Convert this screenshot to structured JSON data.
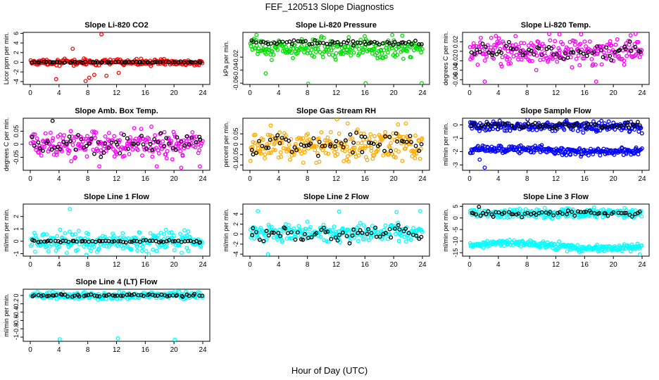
{
  "figure": {
    "title": "FEF_120513  Slope Diagnostics",
    "xlabel": "Hour of Day (UTC)"
  },
  "colors": {
    "red": "#ff0000",
    "green": "#00dd00",
    "magenta": "#ff00ff",
    "orange": "#ffaa00",
    "blue": "#0000ff",
    "cyan": "#00ffff",
    "black": "#000000"
  },
  "chart_data": [
    {
      "type": "scatter",
      "title": "Slope Li-820 CO2",
      "ylabel": "Licor ppm per min.",
      "xlim": [
        0,
        24
      ],
      "ylim": [
        -4.6,
        6.2
      ],
      "xticks": [
        0,
        4,
        8,
        12,
        16,
        20,
        24
      ],
      "yticks": [
        -4,
        -2,
        0,
        2,
        4,
        6
      ],
      "series": [
        {
          "name": "raw",
          "color": "red",
          "center": 0,
          "spread": 0.5,
          "spread2": 0,
          "outliers": [
            [
              9.9,
              5.8
            ],
            [
              3.6,
              -3.5
            ],
            [
              7.7,
              -3.9
            ],
            [
              8.2,
              -3.2
            ],
            [
              10.6,
              -2.8
            ],
            [
              12.3,
              -2.2
            ],
            [
              5.9,
              2.8
            ],
            [
              8.9,
              -2.6
            ]
          ]
        },
        {
          "name": "mean",
          "color": "black",
          "center": 0,
          "spread": 0.08,
          "spread2": 0,
          "outliers": []
        }
      ]
    },
    {
      "type": "scatter",
      "title": "Slope Li-820 Pressure",
      "ylabel": "kPa per min.",
      "xlim": [
        0,
        24
      ],
      "ylim": [
        -0.062,
        0.018
      ],
      "xticks": [
        0,
        4,
        8,
        12,
        16,
        20,
        24
      ],
      "yticks": [
        -0.06,
        -0.04,
        -0.02
      ],
      "series": [
        {
          "name": "raw",
          "color": "green",
          "center": -0.006,
          "spread": 0.012,
          "spread2": 0,
          "outliers": [
            [
              2.2,
              -0.045
            ],
            [
              8.1,
              -0.061
            ],
            [
              16.1,
              -0.06
            ],
            [
              23.9,
              -0.06
            ],
            [
              0.9,
              0.014
            ],
            [
              19.8,
              0.014
            ],
            [
              21.2,
              0.013
            ]
          ]
        },
        {
          "name": "mean",
          "color": "black",
          "center": 0.002,
          "spread": 0.003,
          "spread2": 0,
          "outliers": []
        }
      ]
    },
    {
      "type": "scatter",
      "title": "Slope Li-820 Temp.",
      "ylabel": "degrees C per min.",
      "xlim": [
        0,
        24
      ],
      "ylim": [
        -0.07,
        0.04
      ],
      "xticks": [
        0,
        4,
        8,
        12,
        16,
        20,
        24
      ],
      "yticks": [
        -0.06,
        -0.04,
        -0.02,
        0,
        0.02
      ],
      "series": [
        {
          "name": "raw",
          "color": "magenta",
          "center": 0,
          "spread": 0.025,
          "spread2": 0,
          "outliers": [
            [
              23.1,
              0.037
            ],
            [
              2.1,
              -0.064
            ],
            [
              17.6,
              -0.064
            ],
            [
              12.5,
              0.036
            ]
          ]
        },
        {
          "name": "mean",
          "color": "black",
          "center": 0,
          "spread": 0.015,
          "spread2": 0,
          "outliers": []
        }
      ]
    },
    {
      "type": "scatter",
      "title": "Slope Amb. Box Temp.",
      "ylabel": "degrees C per min.",
      "xlim": [
        0,
        24
      ],
      "ylim": [
        -0.1,
        0.1
      ],
      "xticks": [
        0,
        4,
        8,
        12,
        16,
        20,
        24
      ],
      "yticks": [
        -0.05,
        0,
        0.05
      ],
      "series": [
        {
          "name": "raw",
          "color": "magenta",
          "center": -0.002,
          "spread": 0.045,
          "spread2": 0,
          "outliers": [
            [
              9.6,
              -0.085
            ],
            [
              17.6,
              -0.085
            ],
            [
              23.6,
              -0.085
            ],
            [
              21.0,
              -0.09
            ]
          ]
        },
        {
          "name": "mean",
          "color": "black",
          "center": 0,
          "spread": 0.035,
          "spread2": 0,
          "outliers": [
            [
              3.1,
              0.09
            ]
          ]
        }
      ]
    },
    {
      "type": "scatter",
      "title": "Slope Gas Stream RH",
      "ylabel": "percent per min.",
      "xlim": [
        0,
        24
      ],
      "ylim": [
        -0.125,
        0.125
      ],
      "xticks": [
        0,
        4,
        8,
        12,
        16,
        20,
        24
      ],
      "yticks": [
        -0.1,
        -0.05,
        0,
        0.05
      ],
      "series": [
        {
          "name": "raw",
          "color": "orange",
          "center": -0.005,
          "spread": 0.06,
          "spread2": 0,
          "outliers": [
            [
              2.9,
              0.09
            ],
            [
              12.1,
              0.12
            ],
            [
              13.6,
              0.1
            ],
            [
              20.6,
              0.095
            ],
            [
              21.7,
              0.1
            ]
          ]
        },
        {
          "name": "mean",
          "color": "black",
          "center": 0,
          "spread": 0.045,
          "spread2": 0,
          "outliers": []
        }
      ]
    },
    {
      "type": "scatter",
      "title": "Slope Sample Flow",
      "ylabel": "ml/min per min.",
      "xlim": [
        0,
        24
      ],
      "ylim": [
        -3.4,
        0.5
      ],
      "xticks": [
        0,
        4,
        8,
        12,
        16,
        20,
        24
      ],
      "yticks": [
        -3,
        -2,
        -1,
        0
      ],
      "series": [
        {
          "name": "raw",
          "color": "blue",
          "center": -0.1,
          "spread": 0.35,
          "spread2": 0,
          "outliers": [
            [
              1.4,
              -2.6
            ],
            [
              2.1,
              -3.2
            ]
          ]
        },
        {
          "name": "raw-low",
          "color": "blue",
          "center": -1.9,
          "spread": 0.25,
          "spread2": 0.12,
          "outliers": []
        },
        {
          "name": "mean",
          "color": "black",
          "center": -0.05,
          "spread": 0.2,
          "spread2": 0,
          "outliers": []
        }
      ]
    },
    {
      "type": "scatter",
      "title": "Slope Line 1 Flow",
      "ylabel": "ml/min per min.",
      "xlim": [
        0,
        24
      ],
      "ylim": [
        -1.2,
        3.0
      ],
      "xticks": [
        0,
        4,
        8,
        12,
        16,
        20,
        24
      ],
      "yticks": [
        -1,
        0,
        1,
        2
      ],
      "series": [
        {
          "name": "raw",
          "color": "cyan",
          "center": 0,
          "spread": 0.7,
          "spread2": 0,
          "outliers": [
            [
              5.5,
              2.6
            ],
            [
              7.8,
              -1.1
            ],
            [
              16.5,
              -1.05
            ]
          ]
        },
        {
          "name": "mean",
          "color": "black",
          "center": 0,
          "spread": 0.08,
          "spread2": 0,
          "outliers": []
        }
      ]
    },
    {
      "type": "scatter",
      "title": "Slope Line 2 Flow",
      "ylabel": "ml/min per min.",
      "xlim": [
        0,
        24
      ],
      "ylim": [
        -4.4,
        6.0
      ],
      "xticks": [
        0,
        4,
        8,
        12,
        16,
        20,
        24
      ],
      "yticks": [
        -4,
        -2,
        0,
        2,
        4
      ],
      "series": [
        {
          "name": "raw",
          "color": "cyan",
          "center": 0.3,
          "spread": 1.6,
          "spread2": 0,
          "outliers": [
            [
              1.1,
              4.6
            ],
            [
              2.5,
              -4.0
            ],
            [
              12.4,
              4.5
            ],
            [
              20.4,
              4.4
            ],
            [
              23.7,
              4.6
            ]
          ]
        },
        {
          "name": "mean",
          "color": "black",
          "center": 0,
          "spread": 1.5,
          "spread2": 0,
          "outliers": []
        }
      ]
    },
    {
      "type": "scatter",
      "title": "Slope Line 3 Flow",
      "ylabel": "ml/min per min.",
      "xlim": [
        0,
        24
      ],
      "ylim": [
        -16.5,
        6.0
      ],
      "xticks": [
        0,
        4,
        8,
        12,
        16,
        20,
        24
      ],
      "yticks": [
        -15,
        -10,
        -5,
        0,
        5
      ],
      "series": [
        {
          "name": "raw",
          "color": "cyan",
          "center": 2.0,
          "spread": 1.6,
          "spread2": 0,
          "outliers": []
        },
        {
          "name": "raw-low",
          "color": "cyan",
          "center": -12.0,
          "spread": 1.3,
          "spread2": 1.2,
          "outliers": [
            [
              23.7,
              -15.7
            ]
          ]
        },
        {
          "name": "mean",
          "color": "black",
          "center": 1.8,
          "spread": 1.2,
          "spread2": 0,
          "outliers": [
            [
              1.3,
              4.8
            ]
          ]
        }
      ]
    },
    {
      "type": "scatter",
      "title": "Slope Line 4 (LT) Flow",
      "ylabel": "ml/min per min.",
      "xlim": [
        0,
        24
      ],
      "ylim": [
        -1.1,
        0.15
      ],
      "xticks": [
        0,
        4,
        8,
        12,
        16,
        20,
        24
      ],
      "yticks": [
        -1.0,
        -0.8,
        -0.6,
        -0.4,
        -0.2,
        0.0
      ],
      "series": [
        {
          "name": "raw",
          "color": "cyan",
          "center": 0,
          "spread": 0.07,
          "spread2": 0,
          "outliers": [
            [
              4.1,
              -1.05
            ],
            [
              12.2,
              -1.03
            ],
            [
              20.1,
              -1.06
            ]
          ]
        },
        {
          "name": "mean",
          "color": "black",
          "center": 0,
          "spread": 0.03,
          "spread2": 0,
          "outliers": []
        }
      ]
    }
  ]
}
